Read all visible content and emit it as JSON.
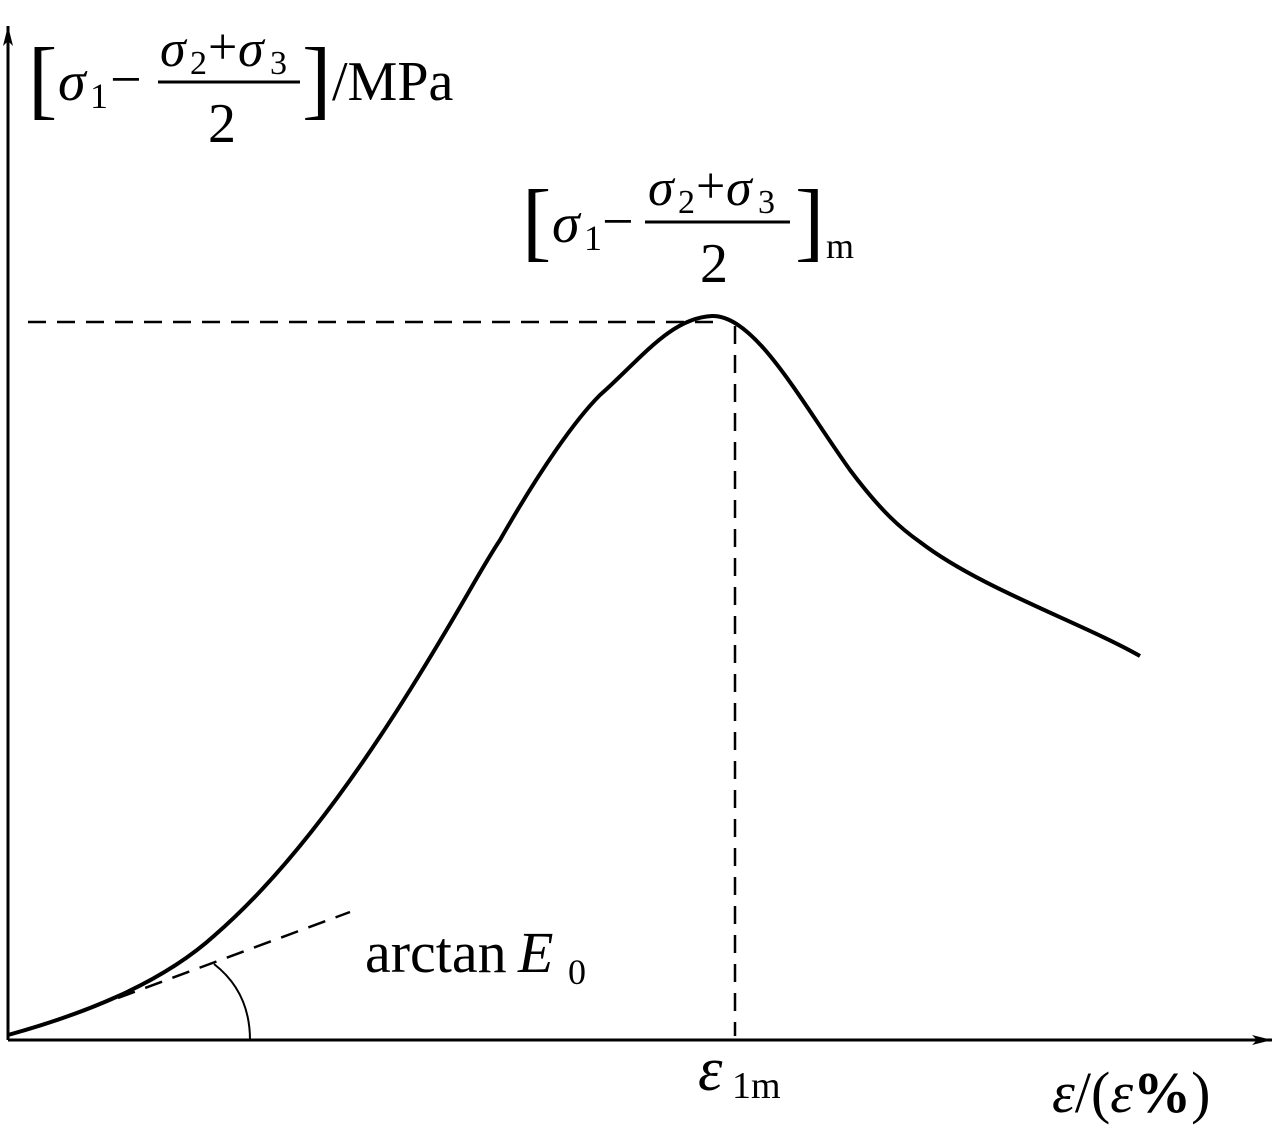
{
  "y_axis_label": {
    "open": "[",
    "lead": "σ",
    "lead_sub": "1",
    "minus": "−",
    "num_a": "σ",
    "num_a_sub": "2",
    "plus": "+",
    "num_b": "σ",
    "num_b_sub": "3",
    "den": "2",
    "close": "]",
    "unit": "/MPa"
  },
  "peak_label": {
    "open": "[",
    "lead": "σ",
    "lead_sub": "1",
    "minus": "−",
    "num_a": "σ",
    "num_a_sub": "2",
    "plus": "+",
    "num_b": "σ",
    "num_b_sub": "3",
    "den": "2",
    "close": "]",
    "sub": "m"
  },
  "tangent_label": {
    "func": "arctan",
    "var": "E",
    "var_sub": "0"
  },
  "peak_strain_label": {
    "symbol": "ε",
    "sub": "1m"
  },
  "x_axis_label": {
    "symbol": "ε",
    "open": "/(",
    "inner": "ε",
    "percent": "%",
    "close": ")"
  }
}
